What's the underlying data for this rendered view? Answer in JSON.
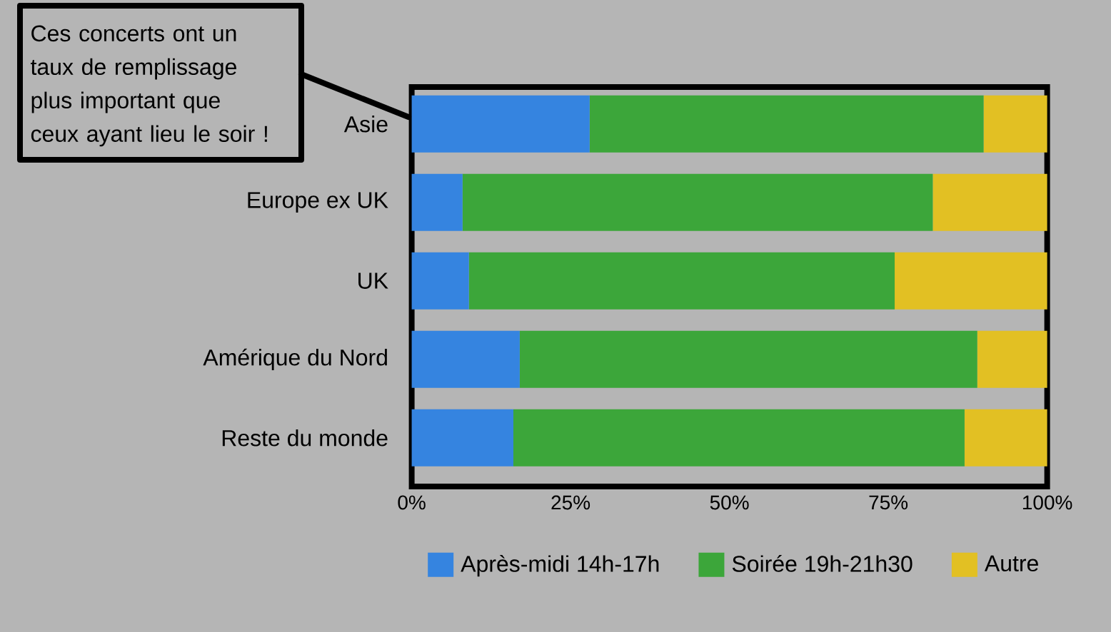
{
  "chart_data": {
    "type": "bar",
    "orientation": "horizontal",
    "stacked": true,
    "categories": [
      "Asie",
      "Europe ex UK",
      "UK",
      "Amérique du Nord",
      "Reste du monde"
    ],
    "series": [
      {
        "name": "Après-midi 14h-17h",
        "color": "#3584e0",
        "values": [
          28,
          8,
          9,
          17,
          16
        ]
      },
      {
        "name": "Soirée 19h-21h30",
        "color": "#3ca63a",
        "values": [
          62,
          74,
          67,
          72,
          71
        ]
      },
      {
        "name": "Autre",
        "color": "#e2c023",
        "values": [
          10,
          18,
          24,
          11,
          13
        ]
      }
    ],
    "xlim": [
      0,
      100
    ],
    "xticks": [
      {
        "value": 0,
        "label": "0%"
      },
      {
        "value": 25,
        "label": "25%"
      },
      {
        "value": 50,
        "label": "50%"
      },
      {
        "value": 75,
        "label": "75%"
      },
      {
        "value": 100,
        "label": "100%"
      }
    ],
    "legend": "bottom",
    "annotations": [
      "Ces concerts ont un taux de remplissage plus important que ceux ayant lieu le soir !"
    ]
  }
}
